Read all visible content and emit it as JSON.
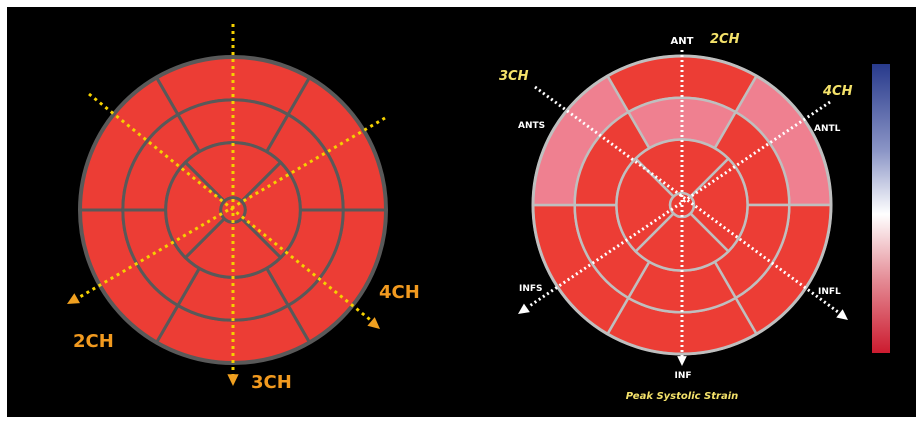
{
  "colors": {
    "background": "#000000",
    "frame": "#ffffff",
    "segment_red": "#ec3d35",
    "segment_pink": "#ef8090",
    "left_seg_stroke": "#595959",
    "right_seg_stroke": "#bfbfbf",
    "guide_yellow": "#f5d100",
    "arrow_orange": "#f0a020",
    "label_orange": "#f29a1f",
    "label_yellow": "#f4e26a",
    "label_white": "#ffffff"
  },
  "left_diagram": {
    "view_labels": {
      "two_ch": "2CH",
      "three_ch": "3CH",
      "four_ch": "4CH"
    }
  },
  "right_diagram": {
    "view_labels": {
      "two_ch": "2CH",
      "three_ch": "3CH",
      "four_ch": "4CH"
    },
    "wall_labels": {
      "ant": "ANT",
      "ants": "ANTS",
      "antl": "ANTL",
      "infs": "INFS",
      "infl": "INFL",
      "inf": "INF"
    },
    "caption": "Peak Systolic Strain",
    "pink_segments": [
      "basal-anterolateral",
      "basal-anteroseptal",
      "mid-anterior"
    ],
    "colorbar": {
      "top": "#283a8c",
      "middle": "#ffffff",
      "bottom": "#cc1b2f"
    }
  }
}
